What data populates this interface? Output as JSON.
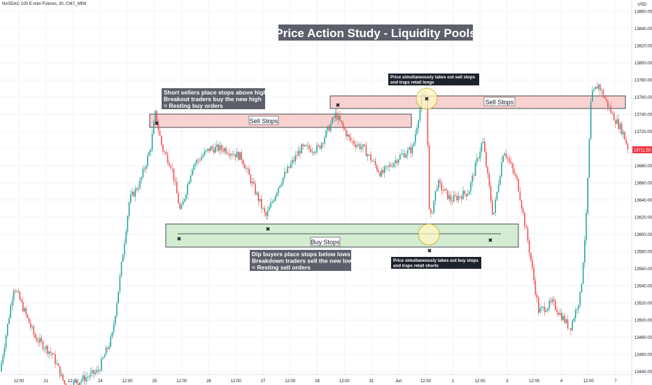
{
  "header": {
    "symbol_text": "NASDAQ 100 E-mini Futures, 30, CME_MINI",
    "currency": "USD"
  },
  "price_axis": {
    "ticks": [
      "13860.00",
      "13840.00",
      "13820.00",
      "13800.00",
      "13780.00",
      "13760.00",
      "13740.00",
      "13720.00",
      "13700.00",
      "13680.00",
      "13660.00",
      "13640.00",
      "13620.00",
      "13600.00",
      "13580.00",
      "13560.00",
      "13540.00",
      "13520.00",
      "13500.00",
      "13480.00",
      "13460.00",
      "13440.00"
    ],
    "current_price": "13711.50",
    "current_price_color": "#f23645"
  },
  "time_axis": {
    "labels": [
      "12:00",
      "21",
      "12:00",
      "24",
      "12:00",
      "25",
      "12:00",
      "26",
      "12:00",
      "27",
      "12:00",
      "28",
      "12:00",
      "31",
      "Jun",
      "12:00",
      "2",
      "12:00",
      "3",
      "12:00",
      "4",
      "12:00",
      "7"
    ]
  },
  "annotations": {
    "title": "Price Action Study - Liquidity Pools",
    "sell_stops_label": "Sell Stops",
    "buy_stops_label": "Buy Stops",
    "short_sellers_note": [
      "Short sellers place stops above highs,",
      "Breakout traders buy the new high",
      "= Resting buy orders"
    ],
    "dip_buyers_note": [
      "Dip buyers place stops below lows",
      "Breakdown traders sell the new low",
      "= Resting sell orders"
    ],
    "sell_stop_callout": [
      "Price simultaneously takes out sell stops",
      "and traps retail longs"
    ],
    "buy_stop_callout": [
      "Price simultaneously takes out buy stops",
      "and traps retail shorts"
    ],
    "marker_symbol": "✖"
  },
  "colors": {
    "up": "#26a69a",
    "down": "#ef5350",
    "sell_zone_fill": "#f8d2d0",
    "buy_zone_fill": "#d4ecd2",
    "note_bg": "#5d606b",
    "callout_bg": "#1e222d",
    "circle_fill": "#fff7c2"
  },
  "chart_data": {
    "type": "candlestick",
    "title": "Price Action Study - Liquidity Pools",
    "symbol": "NASDAQ 100 E-mini Futures, 30, CME_MINI",
    "ylim": [
      13430,
      13870
    ],
    "x_tick_labels": [
      "12:00",
      "21",
      "12:00",
      "24",
      "12:00",
      "25",
      "12:00",
      "26",
      "12:00",
      "27",
      "12:00",
      "28",
      "12:00",
      "31",
      "Jun",
      "12:00",
      "2",
      "12:00",
      "3",
      "12:00",
      "4",
      "12:00",
      "7"
    ],
    "approx_close_path": [
      [
        0,
        13440
      ],
      [
        20,
        13540
      ],
      [
        50,
        13480
      ],
      [
        75,
        13460
      ],
      [
        95,
        13420
      ],
      [
        115,
        13430
      ],
      [
        140,
        13440
      ],
      [
        160,
        13480
      ],
      [
        170,
        13540
      ],
      [
        185,
        13640
      ],
      [
        200,
        13660
      ],
      [
        215,
        13700
      ],
      [
        222,
        13740
      ],
      [
        232,
        13700
      ],
      [
        245,
        13680
      ],
      [
        258,
        13625
      ],
      [
        275,
        13680
      ],
      [
        300,
        13700
      ],
      [
        320,
        13700
      ],
      [
        345,
        13690
      ],
      [
        360,
        13660
      ],
      [
        380,
        13620
      ],
      [
        400,
        13660
      ],
      [
        430,
        13700
      ],
      [
        455,
        13700
      ],
      [
        480,
        13740
      ],
      [
        500,
        13710
      ],
      [
        520,
        13700
      ],
      [
        545,
        13670
      ],
      [
        570,
        13690
      ],
      [
        590,
        13700
      ],
      [
        603,
        13760
      ],
      [
        610,
        13760
      ],
      [
        614,
        13612
      ],
      [
        625,
        13660
      ],
      [
        645,
        13640
      ],
      [
        670,
        13650
      ],
      [
        690,
        13710
      ],
      [
        705,
        13620
      ],
      [
        720,
        13700
      ],
      [
        740,
        13660
      ],
      [
        755,
        13590
      ],
      [
        770,
        13510
      ],
      [
        790,
        13520
      ],
      [
        815,
        13490
      ],
      [
        830,
        13530
      ],
      [
        838,
        13620
      ],
      [
        845,
        13760
      ],
      [
        855,
        13775
      ],
      [
        875,
        13740
      ],
      [
        890,
        13720
      ],
      [
        898,
        13700
      ]
    ],
    "zones": [
      {
        "label": "Sell Stops",
        "y_low": 13739,
        "y_high": 13758
      },
      {
        "label": "Sell Stops",
        "y_low": 13764,
        "y_high": 13775
      },
      {
        "label": "Buy Stops",
        "y_low": 13593,
        "y_high": 13613
      }
    ],
    "current_price": 13711.5
  }
}
